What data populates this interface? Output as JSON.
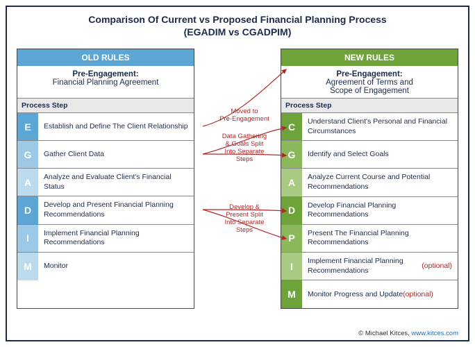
{
  "title": {
    "line1": "Comparison Of Current vs Proposed Financial Planning Process",
    "line2": "(EGADIM vs CGADPIM)"
  },
  "colors": {
    "frame": "#1c2b4a",
    "old_header": "#5ca6d6",
    "new_header": "#6ea33a",
    "annotation": "#b02828",
    "step_header_bg": "#e8e8e8",
    "link": "#2a6db0"
  },
  "old": {
    "header": "OLD RULES",
    "pre_label": "Pre-Engagement:",
    "pre_text": "Financial Planning Agreement",
    "step_header": "Process Step",
    "steps": [
      {
        "letter": "E",
        "label": "Establish and Define The Client Relationship",
        "bg": "#5ca6d6"
      },
      {
        "letter": "G",
        "label": "Gather Client Data",
        "bg": "#9ccae6"
      },
      {
        "letter": "A",
        "label": "Analyze and Evaluate Client's Financial Status",
        "bg": "#bcdced"
      },
      {
        "letter": "D",
        "label": "Develop and Present Financial Planning Recommendations",
        "bg": "#5ca6d6"
      },
      {
        "letter": "I",
        "label": "Implement Financial Planning Recommendations",
        "bg": "#9ccae6"
      },
      {
        "letter": "M",
        "label": "Monitor",
        "bg": "#bcdced"
      }
    ]
  },
  "new": {
    "header": "NEW RULES",
    "pre_label": "Pre-Engagement:",
    "pre_text1": "Agreement of Terms and",
    "pre_text2": "Scope of Engagement",
    "step_header": "Process Step",
    "steps": [
      {
        "letter": "C",
        "label": "Understand Client's Personal and Financial Circumstances",
        "bg": "#6ea33a"
      },
      {
        "letter": "G",
        "label": "Identify and Select Goals",
        "bg": "#8cb85c"
      },
      {
        "letter": "A",
        "label": "Analyze Current Course and Potential Recommendations",
        "bg": "#a8ca82"
      },
      {
        "letter": "D",
        "label": "Develop Financial Planning Recommendations",
        "bg": "#6ea33a"
      },
      {
        "letter": "P",
        "label": "Present The Financial Planning Recommendations",
        "bg": "#8cb85c"
      },
      {
        "letter": "I",
        "label": "Implement Financial Planning Recommendations",
        "optional": "(optional)",
        "bg": "#a8ca82"
      },
      {
        "letter": "M",
        "label": "Monitor Progress and Update",
        "optional": "(optional)",
        "bg": "#6ea33a"
      }
    ]
  },
  "annotations": {
    "a1": {
      "line1": "Moved to",
      "line2": "Pre-Engagement"
    },
    "a2": {
      "line1": "Data Gathering",
      "line2": "& Goals Split",
      "line3": "Into Separate",
      "line4": "Steps"
    },
    "a3": {
      "line1": "Develop &",
      "line2": "Present Split",
      "line3": "Into Separate",
      "line4": "Steps"
    }
  },
  "footer": {
    "credit": "© Michael Kitces,",
    "link_text": "www.kitces.com"
  }
}
